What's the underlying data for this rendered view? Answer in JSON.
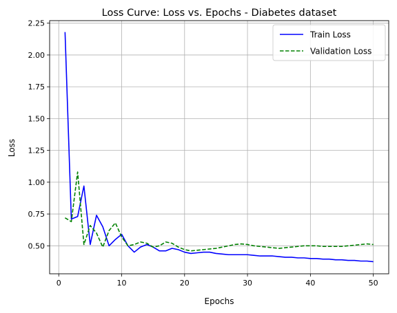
{
  "chart_data": {
    "type": "line",
    "title": "Loss Curve: Loss vs. Epochs - Diabetes dataset",
    "xlabel": "Epochs",
    "ylabel": "Loss",
    "xlim": [
      -1.45,
      52.45
    ],
    "ylim": [
      0.28,
      2.27
    ],
    "xticks": [
      0,
      10,
      20,
      30,
      40,
      50
    ],
    "xtick_labels": [
      "0",
      "10",
      "20",
      "30",
      "40",
      "50"
    ],
    "yticks": [
      0.5,
      0.75,
      1.0,
      1.25,
      1.5,
      1.75,
      2.0,
      2.25
    ],
    "ytick_labels": [
      "0.50",
      "0.75",
      "1.00",
      "1.25",
      "1.50",
      "1.75",
      "2.00",
      "2.25"
    ],
    "grid": true,
    "legend_position": "top-right",
    "x": [
      1,
      2,
      3,
      4,
      5,
      6,
      7,
      8,
      9,
      10,
      11,
      12,
      13,
      14,
      15,
      16,
      17,
      18,
      19,
      20,
      21,
      22,
      23,
      24,
      25,
      26,
      27,
      28,
      29,
      30,
      31,
      32,
      33,
      34,
      35,
      36,
      37,
      38,
      39,
      40,
      41,
      42,
      43,
      44,
      45,
      46,
      47,
      48,
      49,
      50
    ],
    "series": [
      {
        "name": "Train Loss",
        "color": "#0000ff",
        "style": "solid",
        "values": [
          2.18,
          0.71,
          0.73,
          0.97,
          0.51,
          0.74,
          0.65,
          0.5,
          0.55,
          0.59,
          0.5,
          0.45,
          0.49,
          0.51,
          0.49,
          0.46,
          0.46,
          0.48,
          0.47,
          0.45,
          0.44,
          0.445,
          0.45,
          0.45,
          0.44,
          0.435,
          0.43,
          0.43,
          0.43,
          0.43,
          0.425,
          0.42,
          0.42,
          0.42,
          0.415,
          0.41,
          0.41,
          0.405,
          0.405,
          0.4,
          0.4,
          0.395,
          0.395,
          0.39,
          0.39,
          0.385,
          0.385,
          0.38,
          0.38,
          0.375
        ]
      },
      {
        "name": "Validation Loss",
        "color": "#008000",
        "style": "dashed",
        "values": [
          0.72,
          0.69,
          1.08,
          0.51,
          0.66,
          0.6,
          0.49,
          0.62,
          0.68,
          0.57,
          0.5,
          0.51,
          0.53,
          0.52,
          0.49,
          0.5,
          0.53,
          0.52,
          0.49,
          0.47,
          0.46,
          0.465,
          0.47,
          0.475,
          0.48,
          0.49,
          0.5,
          0.51,
          0.515,
          0.51,
          0.5,
          0.495,
          0.49,
          0.485,
          0.48,
          0.485,
          0.49,
          0.495,
          0.5,
          0.5,
          0.5,
          0.495,
          0.495,
          0.495,
          0.495,
          0.5,
          0.505,
          0.51,
          0.515,
          0.51
        ]
      }
    ]
  }
}
